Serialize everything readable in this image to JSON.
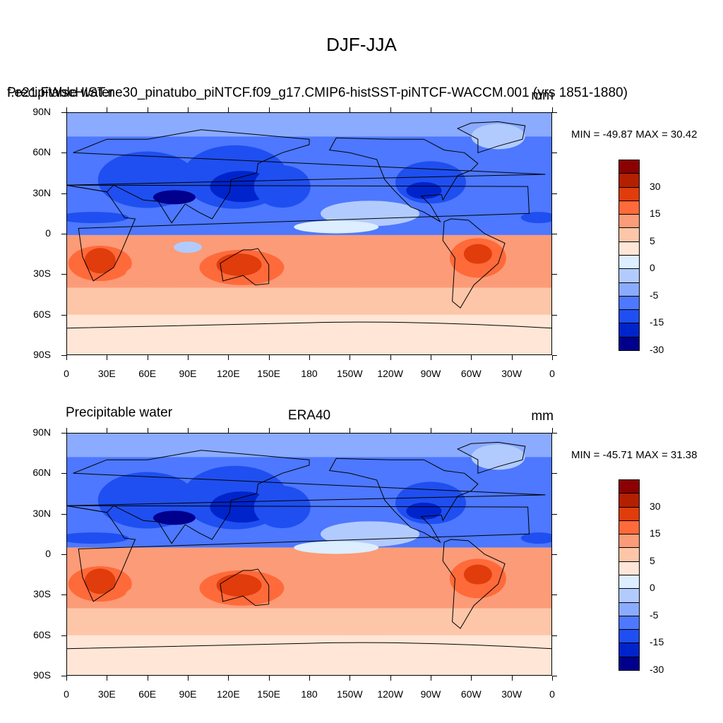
{
  "figure_title": "DJF-JJA",
  "lat_ticks": [
    "90N",
    "60N",
    "30N",
    "0",
    "30S",
    "60S",
    "90S"
  ],
  "lon_ticks": [
    "0",
    "30E",
    "60E",
    "90E",
    "120E",
    "150E",
    "180",
    "150W",
    "120W",
    "90W",
    "60W",
    "30W",
    "0"
  ],
  "colorbar": {
    "labels": [
      "30",
      "15",
      "5",
      "0",
      "-5",
      "-15",
      "-30"
    ],
    "colors": [
      "#8b0000",
      "#b22000",
      "#e03c0c",
      "#ff6a3a",
      "#fc9b78",
      "#fdc6a8",
      "#ffe6d6",
      "#dceeff",
      "#b2cbff",
      "#8aabff",
      "#4d78ff",
      "#1f4ff0",
      "#0024cc",
      "#00008c"
    ]
  },
  "panels": [
    {
      "title_left": "Precipitable water",
      "title_center": "f.e21.FWscHIST.ne30_pinatubo_piNTCF.f09_g17.CMIP6-histSST-piNTCF-WACCM.001 (yrs 1851-1880)",
      "title_right": "mm",
      "stats": "MIN = -49.87 MAX =  30.42"
    },
    {
      "title_left": "Precipitable water",
      "title_center": "ERA40",
      "title_right": "mm",
      "stats": "MIN = -45.71 MAX =  31.38"
    }
  ]
}
